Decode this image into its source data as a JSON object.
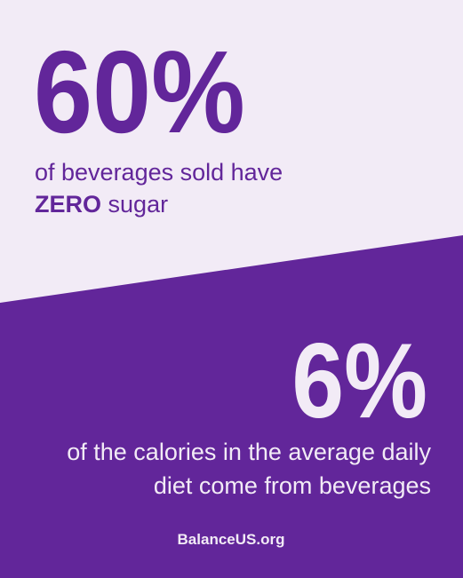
{
  "stat_1": {
    "figure": "60%",
    "caption_line_1": "of beverages sold have",
    "caption_emphasis": "ZERO",
    "caption_rest": "sugar"
  },
  "stat_2": {
    "figure": "6%",
    "caption_lines": [
      "of the calories in the average daily",
      "diet come from beverages"
    ]
  },
  "footer": {
    "source": "BalanceUS.org"
  }
}
